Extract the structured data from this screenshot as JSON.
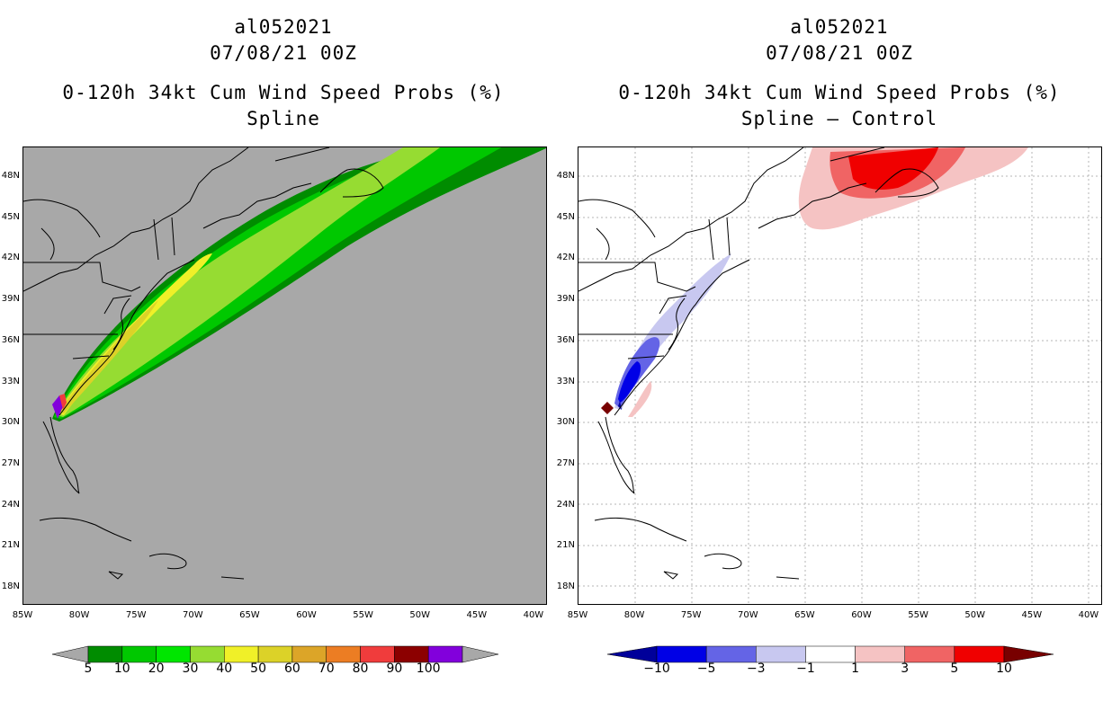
{
  "left_panel": {
    "storm_id": "al052021",
    "datetime": "07/08/21 00Z",
    "product": "0-120h 34kt Cum Wind Speed Probs (%)",
    "variant": "Spline",
    "background_color": "#a8a8a8"
  },
  "right_panel": {
    "storm_id": "al052021",
    "datetime": "07/08/21 00Z",
    "product": "0-120h 34kt Cum Wind Speed Probs (%)",
    "variant": "Spline – Control",
    "background_color": "#ffffff"
  },
  "axes": {
    "lat_labels": [
      "48N",
      "45N",
      "42N",
      "39N",
      "36N",
      "33N",
      "30N",
      "27N",
      "24N",
      "21N",
      "18N"
    ],
    "lon_labels": [
      "85W",
      "80W",
      "75W",
      "70W",
      "65W",
      "60W",
      "55W",
      "50W",
      "45W",
      "40W"
    ]
  },
  "left_colorbar": {
    "labels": [
      "5",
      "10",
      "20",
      "30",
      "40",
      "50",
      "60",
      "70",
      "80",
      "90",
      "100"
    ],
    "colors": [
      "#008c00",
      "#00c800",
      "#00e600",
      "#96dc32",
      "#f0f028",
      "#dcd228",
      "#dca528",
      "#ec7d23",
      "#f03c3c",
      "#8c0000",
      "#8200dc"
    ],
    "end_color": "#a8a8a8"
  },
  "right_colorbar": {
    "labels": [
      "−10",
      "−5",
      "−3",
      "−1",
      "1",
      "3",
      "5",
      "10"
    ],
    "colors": [
      "#00009a",
      "#0000e6",
      "#6464e6",
      "#c8c8f0",
      "#ffffff",
      "#f5c3c3",
      "#f06464",
      "#f00000",
      "#780000"
    ]
  }
}
